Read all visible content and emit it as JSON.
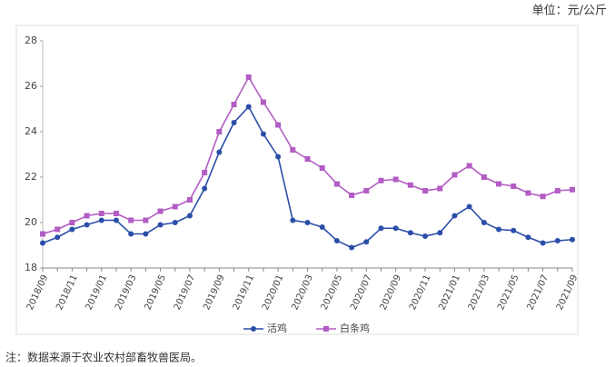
{
  "chart_data": {
    "type": "line",
    "unit": "单位：元/公斤",
    "note": "注：数据来源于农业农村部畜牧兽医局。",
    "categories": [
      "2018/09",
      null,
      "2018/11",
      null,
      "2019/01",
      null,
      "2019/03",
      null,
      "2019/05",
      null,
      "2019/07",
      null,
      "2019/09",
      null,
      "2019/11",
      null,
      "2020/01",
      null,
      "2020/03",
      null,
      "2020/05",
      null,
      "2020/07",
      null,
      "2020/09",
      null,
      "2020/11",
      null,
      "2021/01",
      null,
      "2021/03",
      null,
      "2021/05",
      null,
      "2021/07",
      null,
      "2021/09"
    ],
    "series": [
      {
        "name": "活鸡",
        "color": "#2b4ea8",
        "marker": "circle",
        "values": [
          19.1,
          19.35,
          19.7,
          19.9,
          20.1,
          20.1,
          19.5,
          19.5,
          19.9,
          20.0,
          20.3,
          21.5,
          23.1,
          24.4,
          25.1,
          23.9,
          22.9,
          20.1,
          20.0,
          19.8,
          19.2,
          18.9,
          19.15,
          19.75,
          19.75,
          19.55,
          19.4,
          19.55,
          20.3,
          20.7,
          20.0,
          19.7,
          19.65,
          19.35,
          19.1,
          19.2,
          19.25
        ]
      },
      {
        "name": "白条鸡",
        "color": "#b35cc4",
        "marker": "square",
        "values": [
          19.5,
          19.7,
          20.0,
          20.3,
          20.4,
          20.4,
          20.1,
          20.1,
          20.5,
          20.7,
          21.0,
          22.2,
          24.0,
          25.2,
          26.4,
          25.3,
          24.3,
          23.2,
          22.8,
          22.4,
          21.7,
          21.2,
          21.4,
          21.85,
          21.9,
          21.65,
          21.4,
          21.5,
          22.1,
          22.5,
          22.0,
          21.7,
          21.6,
          21.3,
          21.15,
          21.4,
          21.45
        ]
      }
    ],
    "ylim": [
      18,
      28
    ],
    "yticks": [
      18,
      20,
      22,
      24,
      26,
      28
    ],
    "grid": false
  }
}
